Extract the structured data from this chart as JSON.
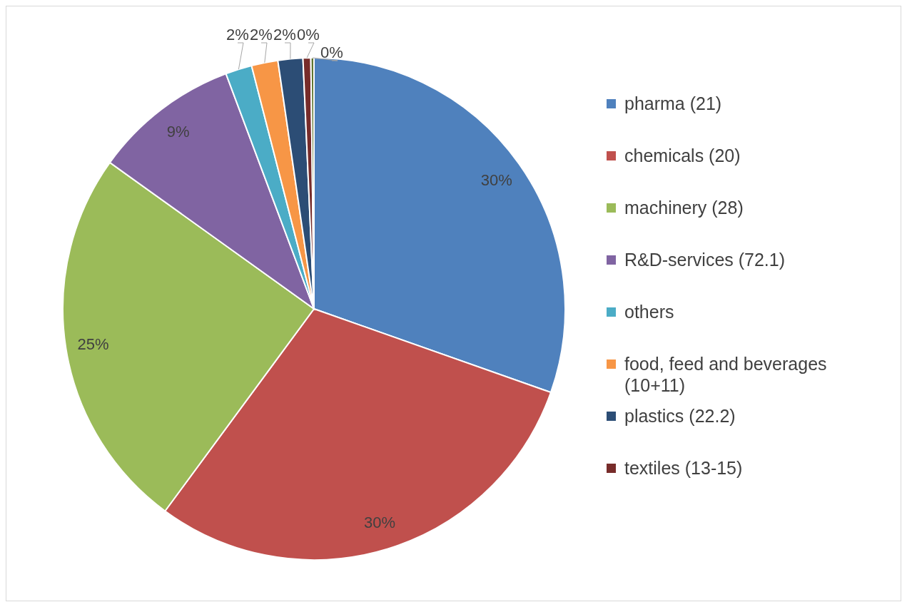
{
  "chart_data": {
    "type": "pie",
    "categories": [
      "pharma (21)",
      "chemicals (20)",
      "machinery (28)",
      "R&D-services (72.1)",
      "others",
      "food, feed and beverages (10+11)",
      "plastics (22.2)",
      "textiles (13-15)",
      null
    ],
    "values": [
      30.4,
      29.7,
      24.8,
      9.4,
      1.7,
      1.7,
      1.6,
      0.5,
      0.2
    ],
    "value_labels": [
      "30%",
      "30%",
      "25%",
      "9%",
      "2%",
      "2%",
      "2%",
      "0%",
      "0%"
    ],
    "colors": [
      "#4f81bd",
      "#c0504d",
      "#9bbb59",
      "#8064a2",
      "#4bacc6",
      "#f79646",
      "#2c4d75",
      "#772c2a",
      "#5f7530"
    ],
    "legend": "right"
  }
}
